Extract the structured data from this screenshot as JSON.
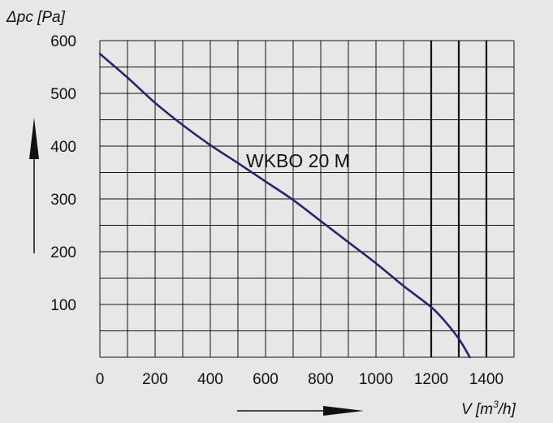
{
  "chart_data": {
    "type": "line",
    "ylabel": "Δpc [Pa]",
    "xlabel_prefix": "V [m",
    "xlabel_sup": "3",
    "xlabel_suffix": "/h]",
    "annotation": "WKBO 20 M",
    "xlim": [
      0,
      1500
    ],
    "ylim": [
      0,
      600
    ],
    "x_ticks": [
      0,
      200,
      400,
      600,
      800,
      1000,
      1200,
      1400
    ],
    "y_ticks": [
      100,
      200,
      300,
      400,
      500,
      600
    ],
    "minor_x_step": 100,
    "minor_y_step": 50,
    "grid": true,
    "series": [
      {
        "color": "#2a2170",
        "points": [
          [
            0,
            575
          ],
          [
            100,
            530
          ],
          [
            200,
            482
          ],
          [
            300,
            440
          ],
          [
            400,
            402
          ],
          [
            500,
            368
          ],
          [
            600,
            333
          ],
          [
            700,
            298
          ],
          [
            800,
            258
          ],
          [
            900,
            218
          ],
          [
            1000,
            178
          ],
          [
            1100,
            135
          ],
          [
            1200,
            95
          ],
          [
            1250,
            68
          ],
          [
            1300,
            35
          ],
          [
            1340,
            0
          ]
        ]
      }
    ],
    "colors": {
      "background": "#e7e7e7",
      "grid": "#111111",
      "curve": "#2a2170"
    }
  }
}
